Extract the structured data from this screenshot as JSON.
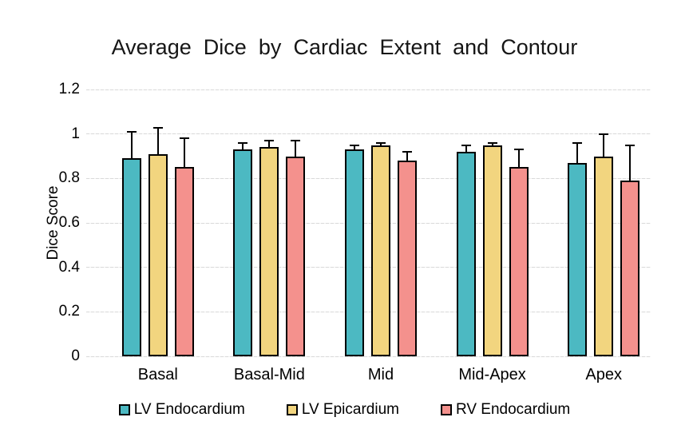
{
  "chart_data": {
    "type": "bar",
    "title": "Average Dice by Cardiac Extent and Contour",
    "xlabel": "",
    "ylabel": "Dice Score",
    "ylim": [
      0,
      1.2
    ],
    "yticks": [
      0,
      0.2,
      0.4,
      0.6,
      0.8,
      1,
      1.2
    ],
    "ytick_labels": [
      "0",
      "0.2",
      "0.4",
      "0.6",
      "0.8",
      "1",
      "1.2"
    ],
    "grid": true,
    "legend_position": "bottom",
    "categories": [
      "Basal",
      "Basal-Mid",
      "Mid",
      "Mid-Apex",
      "Apex"
    ],
    "series": [
      {
        "name": "LV Endocardium",
        "color": "#4CB9C2",
        "values": [
          0.89,
          0.93,
          0.93,
          0.92,
          0.87
        ],
        "error_upper": [
          0.13,
          0.04,
          0.03,
          0.04,
          0.1
        ]
      },
      {
        "name": "LV Epicardium",
        "color": "#F2D57F",
        "values": [
          0.91,
          0.94,
          0.95,
          0.95,
          0.9
        ],
        "error_upper": [
          0.13,
          0.04,
          0.02,
          0.02,
          0.11
        ]
      },
      {
        "name": "RV Endocardium",
        "color": "#F4918D",
        "values": [
          0.85,
          0.9,
          0.88,
          0.85,
          0.79
        ],
        "error_upper": [
          0.14,
          0.08,
          0.05,
          0.09,
          0.17
        ]
      }
    ]
  },
  "style": {
    "background": "#FFFFFF",
    "gridline_color": "#D9D9D9",
    "text_color": "#000000",
    "bar_border_color": "#000000",
    "error_bar_color": "#000000"
  }
}
